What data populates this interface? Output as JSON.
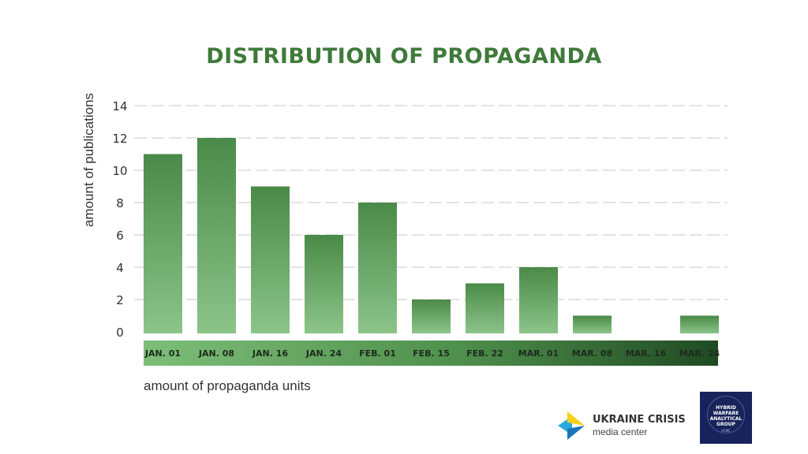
{
  "chart_data": {
    "type": "bar",
    "title": "DISTRIBUTION OF PROPAGANDA",
    "ylabel": "amount of publications",
    "xlabel": "amount of propaganda units",
    "categories": [
      "JAN. 01",
      "JAN. 08",
      "JAN. 16",
      "JAN. 24",
      "FEB. 01",
      "FEB. 15",
      "FEB. 22",
      "MAR. 01",
      "MAR. 08",
      "MAR. 16",
      "MAR. 24"
    ],
    "values": [
      11,
      12,
      9,
      6,
      8,
      2,
      3,
      4,
      1,
      0,
      1
    ],
    "yticks": [
      "0",
      "2",
      "4",
      "6",
      "8",
      "10",
      "12",
      "14"
    ],
    "ylim": [
      0,
      14
    ],
    "grid": "horizontal dashed",
    "colors": {
      "bar_top": "#4a8a48",
      "bar_bottom": "#8cc48a",
      "title": "#3f7a3a",
      "band_light": "#7dbe79",
      "band_dark": "#1f4a22"
    }
  },
  "logos": {
    "ucmc": {
      "name": "UKRAINE CRISIS",
      "sub": "media center"
    },
    "hwag": {
      "line1": "HYBRID",
      "line2": "WARFARE",
      "line3": "ANALYTICAL",
      "line4": "GROUP",
      "small": "UCMC"
    }
  }
}
